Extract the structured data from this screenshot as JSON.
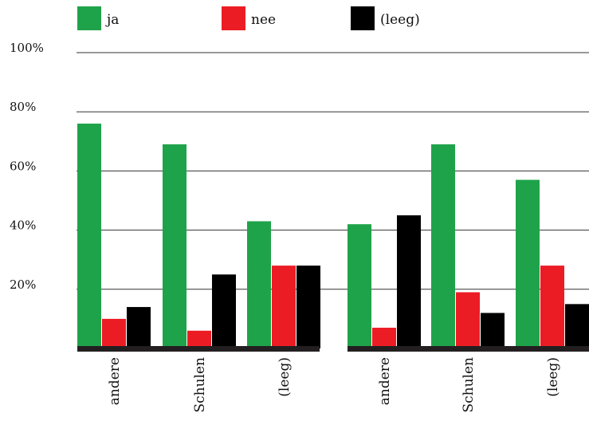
{
  "chart_data": {
    "type": "bar",
    "ylim": [
      0,
      100
    ],
    "yticks": [
      "20%",
      "40%",
      "60%",
      "80%",
      "100%"
    ],
    "grid": true,
    "legend_position": "top",
    "series": [
      {
        "name": "ja",
        "color": "#1fa34a"
      },
      {
        "name": "nee",
        "color": "#ec1c24"
      },
      {
        "name": "(leeg)",
        "color": "#000000"
      }
    ],
    "groups": [
      {
        "categories": [
          "andere",
          "Schulen",
          "(leeg)"
        ],
        "values": {
          "ja": [
            76,
            69,
            43
          ],
          "nee": [
            10,
            6,
            28
          ],
          "(leeg)": [
            14,
            25,
            28
          ]
        }
      },
      {
        "categories": [
          "andere",
          "Schulen",
          "(leeg)"
        ],
        "values": {
          "ja": [
            42,
            69,
            57
          ],
          "nee": [
            7,
            19,
            28
          ],
          "(leeg)": [
            45,
            12,
            15
          ]
        }
      }
    ]
  }
}
